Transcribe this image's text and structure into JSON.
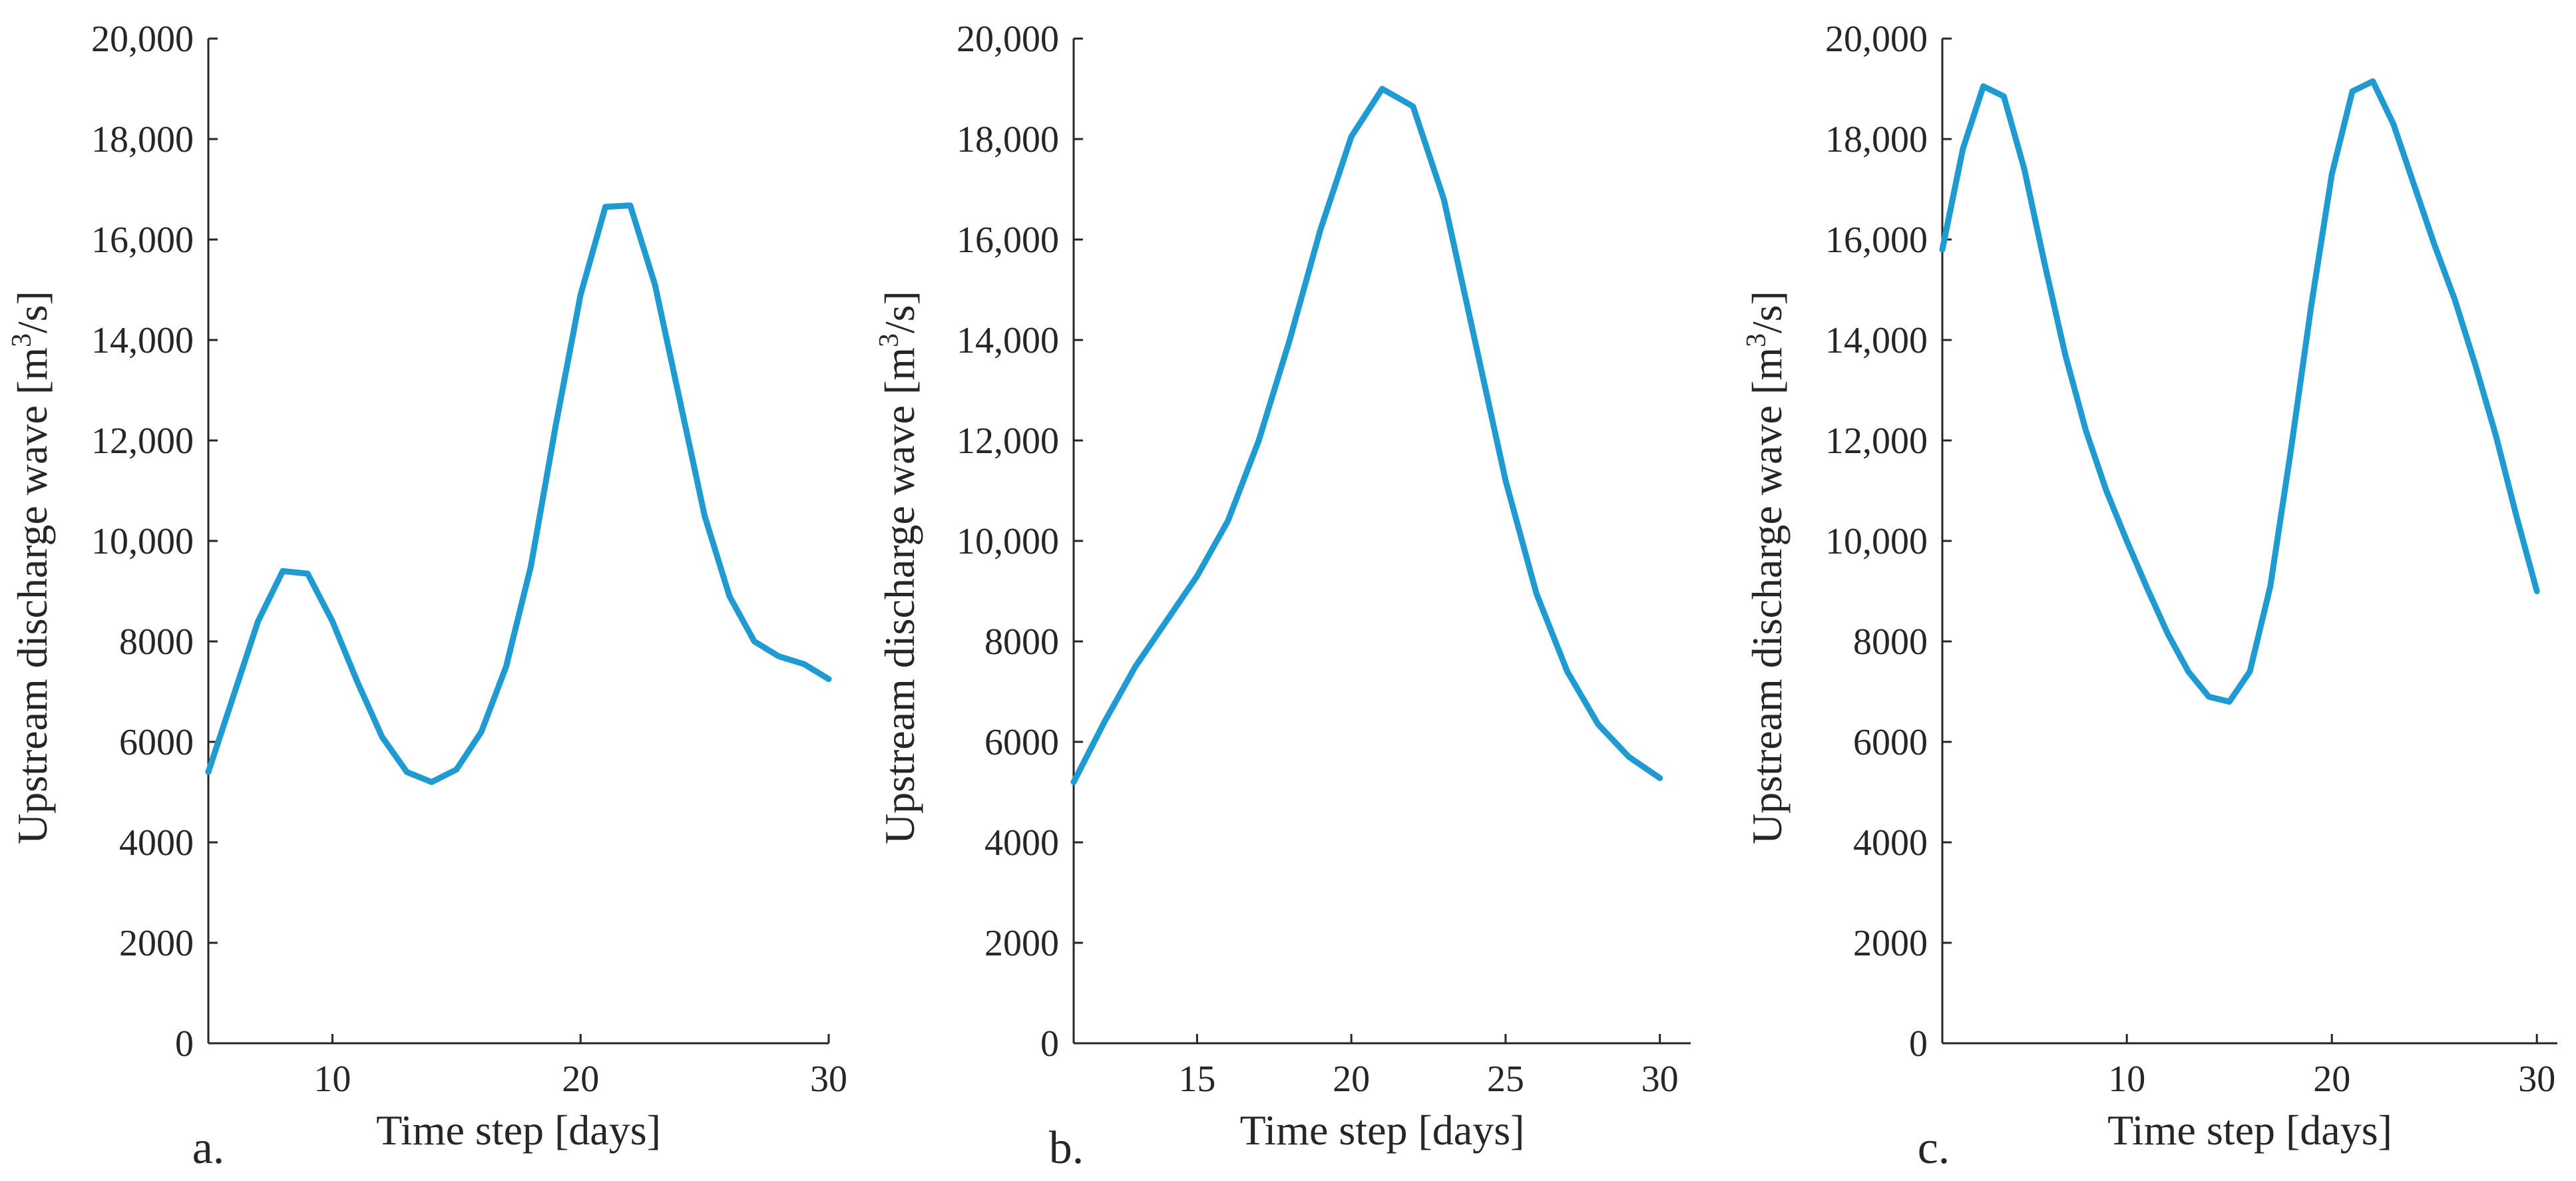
{
  "chart_data": [
    {
      "type": "line",
      "panel": "a.",
      "xlabel": "Time step [days]",
      "ylabel_main": "Upstream discharge wave [m",
      "ylabel_sup": "3",
      "ylabel_tail": "/s]",
      "xlim": [
        5,
        30
      ],
      "ylim": [
        0,
        20000
      ],
      "xticks": [
        10,
        20,
        30
      ],
      "yticks": [
        0,
        2000,
        4000,
        6000,
        8000,
        10000,
        12000,
        14000,
        16000,
        18000,
        20000
      ],
      "ytick_labels": [
        "0",
        "2000",
        "4000",
        "6000",
        "8000",
        "10,000",
        "12,000",
        "14,000",
        "16,000",
        "18,000",
        "20,000"
      ],
      "series": [
        {
          "name": "discharge",
          "color": "#1f9bd1",
          "x": [
            5,
            6,
            7,
            8,
            9,
            10,
            11,
            12,
            13,
            14,
            15,
            16,
            17,
            18,
            19,
            20,
            21,
            22,
            23,
            24,
            25,
            26,
            27,
            28,
            29,
            30
          ],
          "y": [
            5400,
            6900,
            8400,
            9400,
            9350,
            8400,
            7200,
            6100,
            5400,
            5200,
            5450,
            6200,
            7500,
            9500,
            12300,
            14900,
            16650,
            16680,
            15100,
            12800,
            10500,
            8900,
            8000,
            7700,
            7550,
            7250
          ]
        }
      ]
    },
    {
      "type": "line",
      "panel": "b.",
      "xlabel": "Time step [days]",
      "ylabel_main": "Upstream discharge wave [m",
      "ylabel_sup": "3",
      "ylabel_tail": "/s]",
      "xlim": [
        11,
        31
      ],
      "ylim": [
        0,
        20000
      ],
      "xticks": [
        15,
        20,
        25,
        30
      ],
      "yticks": [
        0,
        2000,
        4000,
        6000,
        8000,
        10000,
        12000,
        14000,
        16000,
        18000,
        20000
      ],
      "ytick_labels": [
        "0",
        "2000",
        "4000",
        "6000",
        "8000",
        "10,000",
        "12,000",
        "14,000",
        "16,000",
        "18,000",
        "20,000"
      ],
      "series": [
        {
          "name": "discharge",
          "color": "#1f9bd1",
          "x": [
            11,
            12,
            13,
            14,
            15,
            16,
            17,
            18,
            19,
            20,
            21,
            22,
            23,
            24,
            25,
            26,
            27,
            28,
            29,
            30
          ],
          "y": [
            5200,
            6400,
            7500,
            8400,
            9300,
            10400,
            12000,
            14000,
            16200,
            18050,
            19000,
            18650,
            16800,
            14000,
            11200,
            8950,
            7400,
            6350,
            5700,
            5280
          ]
        }
      ]
    },
    {
      "type": "line",
      "panel": "c.",
      "xlabel": "Time step [days]",
      "ylabel_main": "Upstream discharge wave [m",
      "ylabel_sup": "3",
      "ylabel_tail": "/s]",
      "xlim": [
        1,
        31
      ],
      "ylim": [
        0,
        20000
      ],
      "xticks": [
        10,
        20,
        30
      ],
      "yticks": [
        0,
        2000,
        4000,
        6000,
        8000,
        10000,
        12000,
        14000,
        16000,
        18000,
        20000
      ],
      "ytick_labels": [
        "0",
        "2000",
        "4000",
        "6000",
        "8000",
        "10,000",
        "12,000",
        "14,000",
        "16,000",
        "18,000",
        "20,000"
      ],
      "series": [
        {
          "name": "discharge",
          "color": "#1f9bd1",
          "x": [
            1,
            2,
            3,
            4,
            5,
            6,
            7,
            8,
            9,
            10,
            11,
            12,
            13,
            14,
            15,
            16,
            17,
            18,
            19,
            20,
            21,
            22,
            23,
            24,
            25,
            26,
            27,
            28,
            29,
            30
          ],
          "y": [
            15800,
            17800,
            19050,
            18850,
            17400,
            15500,
            13700,
            12200,
            11000,
            10000,
            9050,
            8150,
            7400,
            6900,
            6800,
            7400,
            9100,
            11800,
            14700,
            17300,
            18950,
            19150,
            18300,
            17100,
            15900,
            14800,
            13500,
            12100,
            10500,
            9000
          ]
        }
      ]
    }
  ]
}
